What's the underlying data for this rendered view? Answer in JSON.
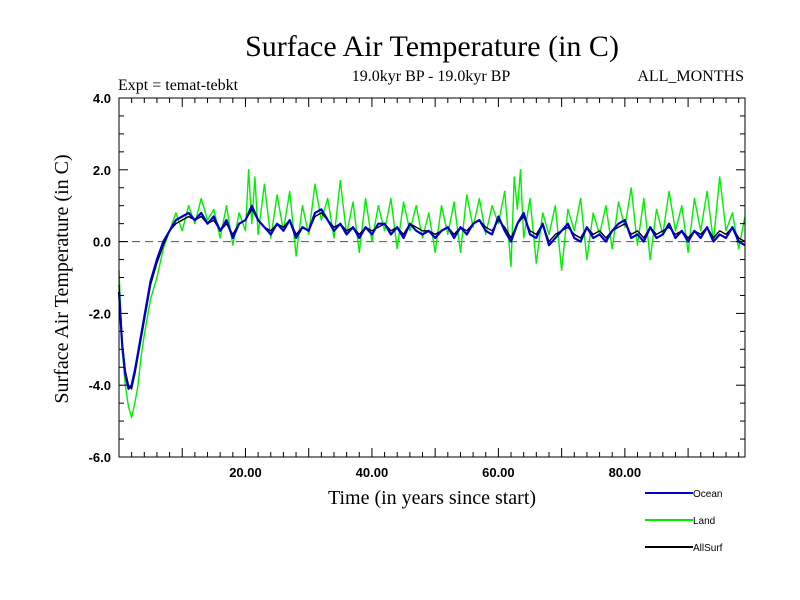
{
  "chart_data": {
    "type": "line",
    "title": "Surface Air Temperature (in C)",
    "subtitle_left": "Expt = temat-tebkt",
    "subtitle_center": "19.0kyr BP - 19.0kyr BP",
    "subtitle_right": "ALL_MONTHS",
    "xlabel": "Time (in years since start)",
    "ylabel": "Surface Air Temperature (in C)",
    "xlim": [
      0,
      99
    ],
    "ylim": [
      -6,
      4
    ],
    "x_ticks": [
      20,
      40,
      60,
      80
    ],
    "x_tick_labels": [
      "20.00",
      "40.00",
      "60.00",
      "80.00"
    ],
    "y_ticks": [
      -6,
      -4,
      -2,
      0,
      2,
      4
    ],
    "y_tick_labels": [
      "-6.0",
      "-4.0",
      "-2.0",
      "0.0",
      "2.0",
      "4.0"
    ],
    "reference_line": 0,
    "series": [
      {
        "name": "Land",
        "color": "#00ee00",
        "x": [
          0,
          0.5,
          1,
          1.5,
          2,
          2.5,
          3,
          3.5,
          4,
          5,
          6,
          7,
          8,
          9,
          10,
          11,
          12,
          13,
          14,
          15,
          16,
          17,
          18,
          19,
          20,
          20.5,
          21,
          21.5,
          22,
          23,
          24,
          25,
          26,
          27,
          28,
          29,
          30,
          31,
          32,
          33,
          34,
          35,
          36,
          37,
          38,
          39,
          40,
          41,
          42,
          43,
          44,
          45,
          46,
          47,
          48,
          49,
          50,
          51,
          52,
          53,
          54,
          55,
          56,
          57,
          58,
          59,
          60,
          61,
          62,
          62.5,
          63,
          63.5,
          64,
          65,
          66,
          67,
          68,
          69,
          70,
          71,
          72,
          73,
          74,
          75,
          76,
          77,
          78,
          79,
          80,
          81,
          82,
          83,
          84,
          85,
          86,
          87,
          88,
          89,
          90,
          91,
          92,
          93,
          94,
          95,
          96,
          97,
          98,
          99
        ],
        "values": [
          -0.8,
          -3.0,
          -4.0,
          -4.6,
          -4.9,
          -4.5,
          -4.0,
          -3.2,
          -2.6,
          -1.6,
          -1.0,
          -0.2,
          0.3,
          0.8,
          0.3,
          1.0,
          0.5,
          1.2,
          0.6,
          0.9,
          0.1,
          1.0,
          -0.1,
          0.8,
          0.3,
          2.0,
          0.5,
          1.8,
          0.2,
          1.6,
          0.1,
          1.3,
          0.3,
          1.4,
          -0.4,
          1.0,
          0.2,
          1.6,
          0.6,
          1.2,
          0.1,
          1.7,
          0.2,
          1.1,
          -0.3,
          1.2,
          0.0,
          1.0,
          0.3,
          1.2,
          -0.2,
          1.1,
          0.3,
          1.0,
          0.1,
          0.8,
          -0.3,
          1.0,
          0.2,
          1.1,
          -0.3,
          1.3,
          0.4,
          1.2,
          0.2,
          1.0,
          0.5,
          1.4,
          -0.7,
          1.8,
          0.9,
          2.0,
          0.1,
          1.2,
          -0.6,
          0.8,
          0.2,
          1.0,
          -0.8,
          0.9,
          0.3,
          1.2,
          -0.5,
          0.8,
          0.2,
          1.0,
          -0.2,
          1.1,
          0.4,
          1.5,
          -0.1,
          1.2,
          -0.5,
          0.9,
          0.2,
          1.4,
          0.3,
          1.0,
          -0.3,
          1.2,
          0.3,
          1.4,
          0.0,
          1.8,
          0.3,
          0.8,
          -0.2,
          0.7
        ]
      },
      {
        "name": "AllSurf",
        "color": "#000000",
        "x": [
          0,
          0.5,
          1,
          1.5,
          2,
          2.5,
          3,
          4,
          5,
          6,
          7,
          8,
          9,
          10,
          11,
          12,
          13,
          14,
          15,
          16,
          17,
          18,
          19,
          20,
          21,
          22,
          23,
          24,
          25,
          26,
          27,
          28,
          29,
          30,
          31,
          32,
          33,
          34,
          35,
          36,
          37,
          38,
          39,
          40,
          41,
          42,
          43,
          44,
          45,
          46,
          47,
          48,
          49,
          50,
          51,
          52,
          53,
          54,
          55,
          56,
          57,
          58,
          59,
          60,
          61,
          62,
          63,
          64,
          65,
          66,
          67,
          68,
          69,
          70,
          71,
          72,
          73,
          74,
          75,
          76,
          77,
          78,
          79,
          80,
          81,
          82,
          83,
          84,
          85,
          86,
          87,
          88,
          89,
          90,
          91,
          92,
          93,
          94,
          95,
          96,
          97,
          98,
          99
        ],
        "values": [
          -1.2,
          -2.8,
          -3.6,
          -4.0,
          -4.1,
          -3.7,
          -3.2,
          -2.2,
          -1.2,
          -0.6,
          -0.1,
          0.3,
          0.5,
          0.6,
          0.7,
          0.6,
          0.7,
          0.5,
          0.6,
          0.3,
          0.5,
          0.2,
          0.5,
          0.6,
          0.9,
          0.6,
          0.4,
          0.3,
          0.5,
          0.4,
          0.6,
          0.2,
          0.4,
          0.3,
          0.7,
          0.8,
          0.6,
          0.4,
          0.5,
          0.3,
          0.4,
          0.2,
          0.4,
          0.3,
          0.4,
          0.5,
          0.3,
          0.4,
          0.2,
          0.5,
          0.4,
          0.3,
          0.3,
          0.2,
          0.3,
          0.4,
          0.2,
          0.4,
          0.3,
          0.5,
          0.6,
          0.4,
          0.3,
          0.6,
          0.4,
          0.1,
          0.5,
          0.7,
          0.3,
          0.2,
          0.5,
          0.0,
          0.2,
          0.3,
          0.4,
          0.2,
          0.1,
          0.4,
          0.2,
          0.3,
          0.1,
          0.3,
          0.4,
          0.5,
          0.2,
          0.3,
          0.1,
          0.4,
          0.2,
          0.3,
          0.4,
          0.2,
          0.3,
          0.1,
          0.3,
          0.2,
          0.4,
          0.1,
          0.3,
          0.2,
          0.4,
          0.1,
          0.0
        ]
      },
      {
        "name": "Ocean",
        "color": "#0000cc",
        "x": [
          0,
          0.5,
          1,
          1.5,
          2,
          2.5,
          3,
          4,
          5,
          6,
          7,
          8,
          9,
          10,
          11,
          12,
          13,
          14,
          15,
          16,
          17,
          18,
          19,
          20,
          21,
          22,
          23,
          24,
          25,
          26,
          27,
          28,
          29,
          30,
          31,
          32,
          33,
          34,
          35,
          36,
          37,
          38,
          39,
          40,
          41,
          42,
          43,
          44,
          45,
          46,
          47,
          48,
          49,
          50,
          51,
          52,
          53,
          54,
          55,
          56,
          57,
          58,
          59,
          60,
          61,
          62,
          63,
          64,
          65,
          66,
          67,
          68,
          69,
          70,
          71,
          72,
          73,
          74,
          75,
          76,
          77,
          78,
          79,
          80,
          81,
          82,
          83,
          84,
          85,
          86,
          87,
          88,
          89,
          90,
          91,
          92,
          93,
          94,
          95,
          96,
          97,
          98,
          99
        ],
        "values": [
          -1.4,
          -2.9,
          -3.7,
          -4.1,
          -4.0,
          -3.6,
          -3.1,
          -2.1,
          -1.1,
          -0.5,
          0.0,
          0.3,
          0.6,
          0.7,
          0.8,
          0.6,
          0.8,
          0.5,
          0.7,
          0.3,
          0.6,
          0.1,
          0.5,
          0.6,
          1.0,
          0.6,
          0.4,
          0.2,
          0.5,
          0.3,
          0.6,
          0.1,
          0.4,
          0.3,
          0.8,
          0.9,
          0.6,
          0.3,
          0.5,
          0.2,
          0.4,
          0.1,
          0.4,
          0.2,
          0.5,
          0.5,
          0.2,
          0.4,
          0.1,
          0.5,
          0.3,
          0.2,
          0.3,
          0.1,
          0.3,
          0.4,
          0.1,
          0.4,
          0.2,
          0.5,
          0.6,
          0.3,
          0.2,
          0.7,
          0.3,
          0.0,
          0.5,
          0.8,
          0.2,
          0.1,
          0.5,
          -0.1,
          0.1,
          0.3,
          0.5,
          0.1,
          0.0,
          0.4,
          0.1,
          0.2,
          0.0,
          0.3,
          0.5,
          0.6,
          0.1,
          0.2,
          0.0,
          0.4,
          0.1,
          0.2,
          0.5,
          0.1,
          0.3,
          0.0,
          0.3,
          0.1,
          0.4,
          0.0,
          0.2,
          0.1,
          0.4,
          0.0,
          -0.1
        ]
      }
    ],
    "legend": [
      {
        "name": "Ocean",
        "color": "#0000cc"
      },
      {
        "name": "Land",
        "color": "#00ee00"
      },
      {
        "name": "AllSurf",
        "color": "#000000"
      }
    ]
  }
}
